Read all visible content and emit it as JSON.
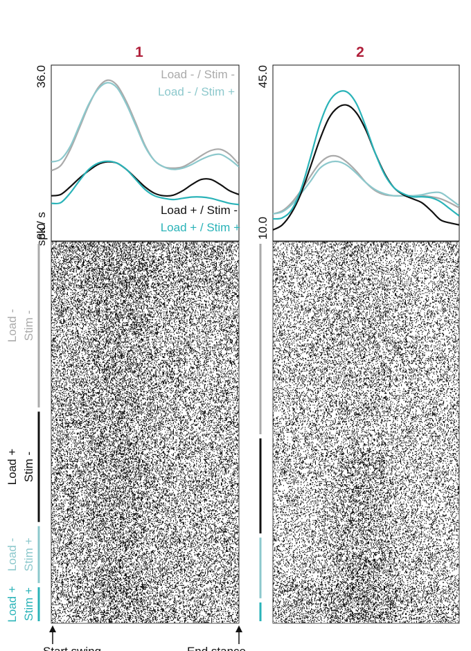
{
  "chart_data": [
    {
      "type": "line",
      "title": "1",
      "ylabel": "spk / s",
      "ylim": [
        8.0,
        36.0
      ],
      "ytick_labels": [
        "36.0",
        "8.0"
      ],
      "x": [
        0,
        0.05,
        0.1,
        0.15,
        0.2,
        0.25,
        0.3,
        0.35,
        0.4,
        0.45,
        0.5,
        0.55,
        0.6,
        0.65,
        0.7,
        0.75,
        0.8,
        0.85,
        0.9,
        0.95,
        1.0
      ],
      "series": [
        {
          "name": "Load - / Stim -",
          "color": "#aaaaaa",
          "values": [
            19.2,
            20.0,
            22.5,
            26.0,
            29.6,
            32.4,
            33.6,
            32.8,
            30.2,
            26.8,
            23.2,
            20.8,
            19.8,
            19.6,
            19.8,
            20.6,
            21.6,
            22.4,
            22.6,
            21.8,
            20.2
          ]
        },
        {
          "name": "Load - / Stim +",
          "color": "#8cc8cc",
          "values": [
            20.6,
            21.0,
            23.0,
            26.4,
            29.8,
            32.2,
            33.2,
            32.4,
            29.8,
            26.4,
            23.0,
            20.8,
            19.8,
            19.4,
            19.6,
            20.2,
            21.0,
            21.6,
            21.8,
            21.0,
            19.8
          ]
        },
        {
          "name": "Load + / Stim -",
          "color": "#111111",
          "values": [
            15.2,
            15.4,
            16.6,
            18.0,
            19.2,
            20.2,
            20.6,
            20.4,
            19.4,
            18.0,
            16.6,
            15.6,
            15.2,
            15.3,
            16.0,
            17.0,
            17.8,
            17.8,
            17.0,
            16.0,
            15.4
          ]
        },
        {
          "name": "Load + / Stim +",
          "color": "#2ab3b8",
          "values": [
            14.0,
            14.1,
            15.6,
            17.6,
            19.4,
            20.4,
            20.7,
            20.4,
            19.4,
            17.8,
            16.2,
            15.2,
            14.8,
            14.6,
            14.8,
            15.0,
            15.0,
            14.8,
            14.4,
            14.0,
            13.8
          ]
        }
      ]
    },
    {
      "type": "line",
      "title": "2",
      "ylabel": "",
      "ylim": [
        10.0,
        45.0
      ],
      "ytick_labels": [
        "45.0",
        "10.0"
      ],
      "x": [
        0,
        0.05,
        0.1,
        0.15,
        0.2,
        0.25,
        0.3,
        0.35,
        0.4,
        0.45,
        0.5,
        0.55,
        0.6,
        0.65,
        0.7,
        0.75,
        0.8,
        0.85,
        0.9,
        0.95,
        1.0
      ],
      "series": [
        {
          "name": "Load - / Stim -",
          "color": "#aaaaaa",
          "values": [
            15.4,
            16.0,
            17.6,
            20.0,
            22.8,
            25.4,
            26.8,
            26.8,
            25.6,
            23.8,
            21.6,
            20.0,
            19.2,
            19.0,
            19.0,
            19.0,
            19.0,
            18.8,
            18.4,
            17.6,
            16.6
          ]
        },
        {
          "name": "Load - / Stim +",
          "color": "#8cc8cc",
          "values": [
            15.4,
            15.8,
            17.2,
            19.4,
            21.8,
            24.4,
            25.6,
            25.8,
            25.0,
            23.4,
            21.6,
            20.2,
            19.4,
            19.0,
            19.0,
            19.0,
            19.2,
            19.6,
            19.6,
            18.4,
            17.0
          ]
        },
        {
          "name": "Load + / Stim -",
          "color": "#111111",
          "values": [
            12.2,
            13.2,
            15.6,
            19.4,
            24.6,
            30.0,
            34.4,
            36.6,
            37.0,
            35.4,
            32.0,
            27.4,
            23.4,
            20.6,
            19.2,
            18.4,
            17.6,
            16.0,
            14.2,
            13.6,
            13.2
          ]
        },
        {
          "name": "Load + / Stim +",
          "color": "#2ab3b8",
          "values": [
            14.4,
            14.6,
            16.2,
            20.2,
            26.4,
            33.0,
            37.6,
            39.6,
            39.6,
            37.2,
            32.6,
            27.4,
            23.2,
            20.6,
            19.4,
            18.8,
            18.8,
            18.6,
            17.8,
            16.4,
            15.0
          ]
        }
      ]
    }
  ],
  "raster_groups": [
    {
      "label": [
        "Load -",
        "Stim -"
      ],
      "color": "#aaaaaa",
      "fraction": 0.44
    },
    {
      "label": [
        "Load +",
        "Stim -"
      ],
      "color": "#111111",
      "fraction": 0.3
    },
    {
      "label": [
        "Load -",
        "Stim +"
      ],
      "color": "#8cc8cc",
      "fraction": 0.16
    },
    {
      "label": [
        "Load +",
        "Stim +"
      ],
      "color": "#2ab3b8",
      "fraction": 0.1
    }
  ],
  "raster_groups_2": [
    {
      "color": "#aaaaaa",
      "fraction": 0.51
    },
    {
      "color": "#111111",
      "fraction": 0.26
    },
    {
      "color": "#8cc8cc",
      "fraction": 0.17
    },
    {
      "color": "#2ab3b8",
      "fraction": 0.06
    }
  ],
  "x_annotations": {
    "start": "Start swing",
    "end": "End stance"
  }
}
